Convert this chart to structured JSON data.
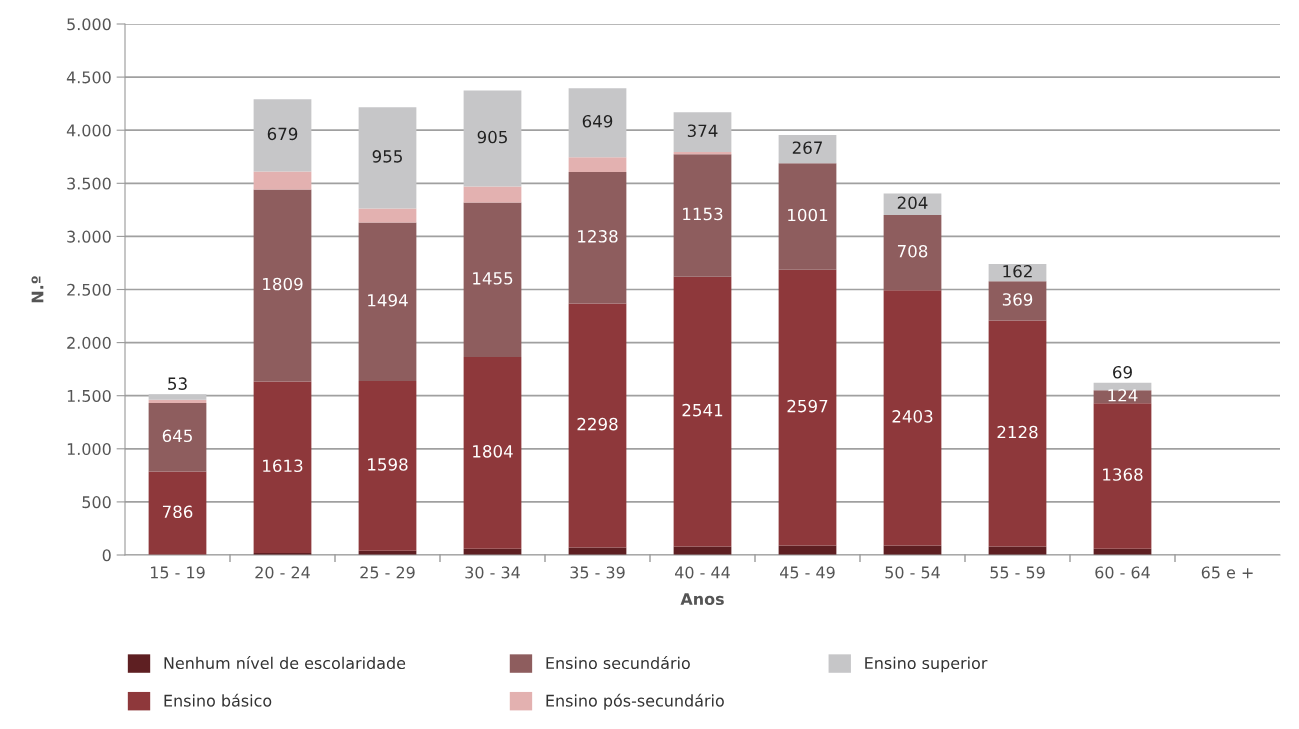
{
  "chart_data": {
    "type": "bar",
    "stacked": true,
    "xlabel": "Anos",
    "ylabel": "N.º",
    "categories": [
      "15 - 19",
      "20 - 24",
      "25 - 29",
      "30 - 34",
      "35 - 39",
      "40 - 44",
      "45 - 49",
      "50 - 54",
      "55 - 59",
      "60 - 64",
      "65 e +"
    ],
    "series": [
      {
        "name": "Nenhum nível de escolaridade",
        "color": "#5e1f22",
        "values": [
          null,
          20,
          40,
          60,
          70,
          80,
          90,
          90,
          80,
          60,
          0
        ],
        "value_labels": [
          null,
          null,
          null,
          null,
          null,
          null,
          null,
          null,
          null,
          null,
          null
        ]
      },
      {
        "name": "Ensino básico",
        "color": "#8e383b",
        "values": [
          786,
          1613,
          1598,
          1804,
          2298,
          2541,
          2597,
          2403,
          2128,
          1368,
          0
        ],
        "value_labels": [
          "786",
          "1613",
          "1598",
          "1804",
          "2298",
          "2541",
          "2597",
          "2403",
          "2128",
          "1368",
          null
        ]
      },
      {
        "name": "Ensino secundário",
        "color": "#8e5d5e",
        "values": [
          645,
          1809,
          1494,
          1455,
          1238,
          1153,
          1001,
          708,
          369,
          124,
          0
        ],
        "value_labels": [
          "645",
          "1809",
          "1494",
          "1455",
          "1238",
          "1153",
          "1001",
          "708",
          "369",
          "124",
          null
        ]
      },
      {
        "name": "Ensino pós-secundário",
        "color": "#e3b1b0",
        "values": [
          30,
          170,
          130,
          150,
          140,
          20,
          0,
          0,
          0,
          0,
          0
        ],
        "value_labels": [
          null,
          null,
          null,
          null,
          null,
          null,
          null,
          null,
          null,
          null,
          null
        ]
      },
      {
        "name": "Ensino superior",
        "color": "#c6c6c8",
        "values": [
          53,
          679,
          955,
          905,
          649,
          374,
          267,
          204,
          162,
          69,
          0
        ],
        "value_labels": [
          "53",
          "679",
          "955",
          "905",
          "649",
          "374",
          "267",
          "204",
          "162",
          "69",
          null
        ]
      }
    ],
    "ylim": [
      0,
      5000
    ],
    "yticks": [
      0,
      500,
      {
        "value": 1000,
        "label": "1.000"
      },
      {
        "value": 1500,
        "label": "1.500"
      },
      {
        "value": 2000,
        "label": "2.000"
      },
      {
        "value": 2500,
        "label": "2.500"
      },
      {
        "value": 3000,
        "label": "3.000"
      },
      {
        "value": 3500,
        "label": "3.500"
      },
      {
        "value": 4000,
        "label": "4.000"
      },
      {
        "value": 4500,
        "label": "4.500"
      },
      {
        "value": 5000,
        "label": "5.000"
      }
    ],
    "grid": "y",
    "legend": "bottom"
  }
}
